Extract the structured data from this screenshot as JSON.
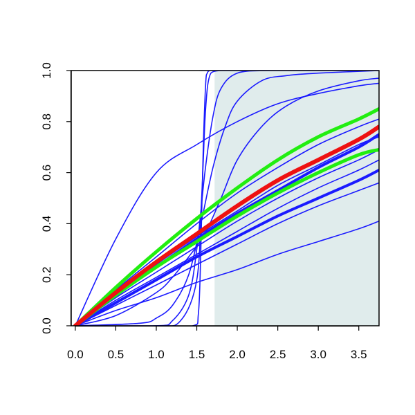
{
  "chart_data": {
    "type": "line",
    "title": "",
    "xlabel": "",
    "ylabel": "",
    "xlim": [
      -0.05,
      3.75
    ],
    "ylim": [
      0,
      1
    ],
    "x_ticks": [
      "0.0",
      "0.5",
      "1.0",
      "1.5",
      "2.0",
      "2.5",
      "3.0",
      "3.5"
    ],
    "y_ticks": [
      "0.0",
      "0.2",
      "0.4",
      "0.6",
      "0.8",
      "1.0"
    ],
    "shaded_region": {
      "x_from": 1.72,
      "x_to": 3.75,
      "color": "#e0ecec"
    },
    "grid": false,
    "legend": "none",
    "series": [
      {
        "color": "#1a1aff",
        "width": 1.6,
        "x": [
          0,
          0.5,
          1.0,
          1.5,
          2.0,
          2.5,
          3.0,
          3.5,
          3.75
        ],
        "y": [
          0,
          0.34,
          0.6,
          0.71,
          0.8,
          0.87,
          0.91,
          0.94,
          0.95
        ]
      },
      {
        "color": "#1a1aff",
        "width": 1.6,
        "x": [
          0,
          0.5,
          1.0,
          1.5,
          2.0,
          2.5,
          3.0,
          3.5,
          3.75
        ],
        "y": [
          0,
          0.14,
          0.27,
          0.4,
          0.52,
          0.62,
          0.71,
          0.78,
          0.81
        ]
      },
      {
        "color": "#1a1aff",
        "width": 1.6,
        "x": [
          0,
          0.5,
          1.0,
          1.5,
          2.0,
          2.5,
          3.0,
          3.5,
          3.75
        ],
        "y": [
          0,
          0.12,
          0.24,
          0.35,
          0.45,
          0.55,
          0.63,
          0.71,
          0.74
        ]
      },
      {
        "color": "#1a1aff",
        "width": 1.6,
        "x": [
          0,
          0.5,
          1.0,
          1.5,
          2.0,
          2.5,
          3.0,
          3.5,
          3.75
        ],
        "y": [
          0,
          0.11,
          0.21,
          0.31,
          0.41,
          0.5,
          0.58,
          0.65,
          0.69
        ]
      },
      {
        "color": "#1a1aff",
        "width": 1.6,
        "x": [
          0,
          0.5,
          1.0,
          1.5,
          2.0,
          2.5,
          3.0,
          3.5,
          3.75
        ],
        "y": [
          0,
          0.1,
          0.19,
          0.28,
          0.37,
          0.46,
          0.54,
          0.61,
          0.65
        ]
      },
      {
        "color": "#1a1aff",
        "width": 1.6,
        "x": [
          0,
          0.5,
          1.0,
          1.5,
          2.0,
          2.5,
          3.0,
          3.5,
          3.75
        ],
        "y": [
          0,
          0.08,
          0.16,
          0.24,
          0.32,
          0.4,
          0.47,
          0.53,
          0.56
        ]
      },
      {
        "color": "#1a1aff",
        "width": 1.6,
        "x": [
          0,
          0.5,
          1.0,
          1.5,
          2.0,
          2.5,
          3.0,
          3.5,
          3.75
        ],
        "y": [
          0,
          0.06,
          0.11,
          0.17,
          0.22,
          0.28,
          0.33,
          0.38,
          0.41
        ]
      },
      {
        "color": "#1a1aff",
        "width": 1.6,
        "x": [
          0,
          0.5,
          1.0,
          1.2,
          1.4,
          1.6,
          1.8,
          2.0,
          2.3,
          2.6,
          3.0,
          3.5,
          3.75
        ],
        "y": [
          0,
          0.04,
          0.13,
          0.19,
          0.27,
          0.36,
          0.5,
          0.65,
          0.78,
          0.86,
          0.92,
          0.96,
          0.97
        ]
      },
      {
        "color": "#1a1aff",
        "width": 1.6,
        "x": [
          0,
          0.8,
          1.0,
          1.2,
          1.4,
          1.55,
          1.7,
          1.85,
          2.0,
          2.3,
          2.6,
          3.0,
          3.75
        ],
        "y": [
          0,
          0.01,
          0.03,
          0.08,
          0.2,
          0.4,
          0.62,
          0.78,
          0.88,
          0.96,
          0.98,
          0.99,
          1.0
        ]
      },
      {
        "color": "#1a1aff",
        "width": 1.6,
        "x": [
          0,
          1.0,
          1.2,
          1.4,
          1.5,
          1.6,
          1.7,
          1.8,
          2.0,
          2.4,
          3.0,
          3.75
        ],
        "y": [
          0,
          0.0,
          0.02,
          0.12,
          0.3,
          0.6,
          0.82,
          0.93,
          0.99,
          1.0,
          1.0,
          1.0
        ]
      },
      {
        "color": "#1a1aff",
        "width": 1.6,
        "x": [
          0,
          1.0,
          1.3,
          1.5,
          1.56,
          1.6,
          1.63,
          1.66,
          1.7,
          1.8,
          2.0,
          3.75
        ],
        "y": [
          0,
          0.0,
          0.02,
          0.18,
          0.5,
          0.8,
          0.93,
          0.98,
          0.995,
          1.0,
          1.0,
          1.0
        ]
      },
      {
        "color": "#1a1aff",
        "width": 1.6,
        "x": [
          0,
          1.0,
          1.45,
          1.52,
          1.55,
          1.58,
          1.61,
          1.63,
          1.66,
          1.7,
          3.75
        ],
        "y": [
          0,
          0.0,
          0.0,
          0.05,
          0.3,
          0.7,
          0.95,
          0.99,
          1.0,
          1.0,
          1.0
        ]
      },
      {
        "color": "#1a1aff",
        "width": 4.0,
        "x": [
          0,
          0.5,
          1.0,
          1.5,
          2.0,
          2.5,
          3.0,
          3.5,
          3.75
        ],
        "y": [
          0,
          0.09,
          0.18,
          0.27,
          0.35,
          0.43,
          0.5,
          0.57,
          0.61
        ]
      },
      {
        "color": "#1a1aff",
        "width": 4.0,
        "x": [
          0,
          0.5,
          1.0,
          1.5,
          2.0,
          2.5,
          3.0,
          3.5,
          3.75
        ],
        "y": [
          0,
          0.12,
          0.23,
          0.34,
          0.44,
          0.53,
          0.62,
          0.7,
          0.75
        ]
      },
      {
        "color": "#22ee11",
        "width": 5.0,
        "x": [
          0,
          0.5,
          1.0,
          1.5,
          2.0,
          2.5,
          3.0,
          3.5,
          3.75
        ],
        "y": [
          0,
          0.12,
          0.23,
          0.33,
          0.43,
          0.52,
          0.6,
          0.67,
          0.69
        ]
      },
      {
        "color": "#22ee11",
        "width": 5.0,
        "x": [
          0,
          0.5,
          1.0,
          1.5,
          2.0,
          2.5,
          3.0,
          3.5,
          3.75
        ],
        "y": [
          0,
          0.15,
          0.29,
          0.42,
          0.54,
          0.65,
          0.74,
          0.81,
          0.85
        ]
      },
      {
        "color": "#ee1111",
        "width": 6.0,
        "x": [
          0,
          0.5,
          1.0,
          1.5,
          2.0,
          2.5,
          3.0,
          3.5,
          3.75
        ],
        "y": [
          0,
          0.13,
          0.25,
          0.36,
          0.47,
          0.57,
          0.65,
          0.73,
          0.78
        ]
      }
    ]
  }
}
